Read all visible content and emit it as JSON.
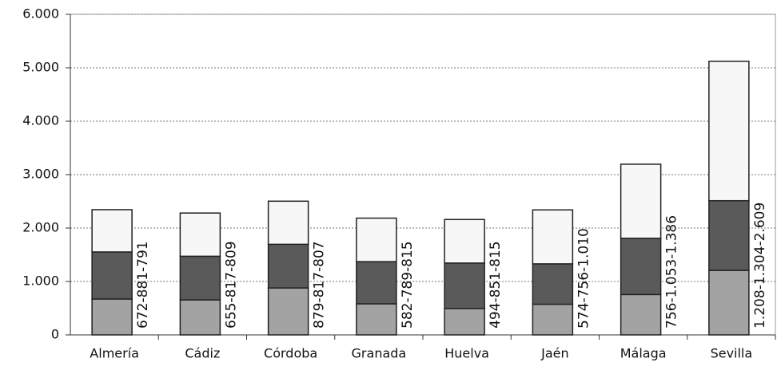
{
  "chart_data": {
    "type": "stacked_bar",
    "categories": [
      "Almería",
      "Cádiz",
      "Córdoba",
      "Granada",
      "Huelva",
      "Jaén",
      "Málaga",
      "Sevilla"
    ],
    "series": [
      {
        "color": "#a3a3a3",
        "values": [
          672,
          655,
          879,
          582,
          494,
          574,
          756,
          1208
        ]
      },
      {
        "color": "#5a5a5a",
        "values": [
          881,
          817,
          817,
          789,
          851,
          756,
          1053,
          1304
        ]
      },
      {
        "color": "#f7f7f7",
        "values": [
          791,
          809,
          807,
          815,
          815,
          1010,
          1386,
          2609
        ]
      }
    ],
    "stack_labels": [
      "672-881-791",
      "655-817-809",
      "879-817-807",
      "582-789-815",
      "494-851-815",
      "574-756-1.010",
      "756-1.053-1.386",
      "1.208-1.304-2.609"
    ],
    "ylim": [
      0,
      6000
    ],
    "yticks": [
      0,
      {
        "value": 1000,
        "label": "1.000"
      },
      {
        "value": 2000,
        "label": "2.000"
      },
      {
        "value": 3000,
        "label": "3.000"
      },
      {
        "value": 4000,
        "label": "4.000"
      },
      {
        "value": 5000,
        "label": "5.000"
      },
      {
        "value": 6000,
        "label": "6.000"
      }
    ],
    "grid": true
  }
}
